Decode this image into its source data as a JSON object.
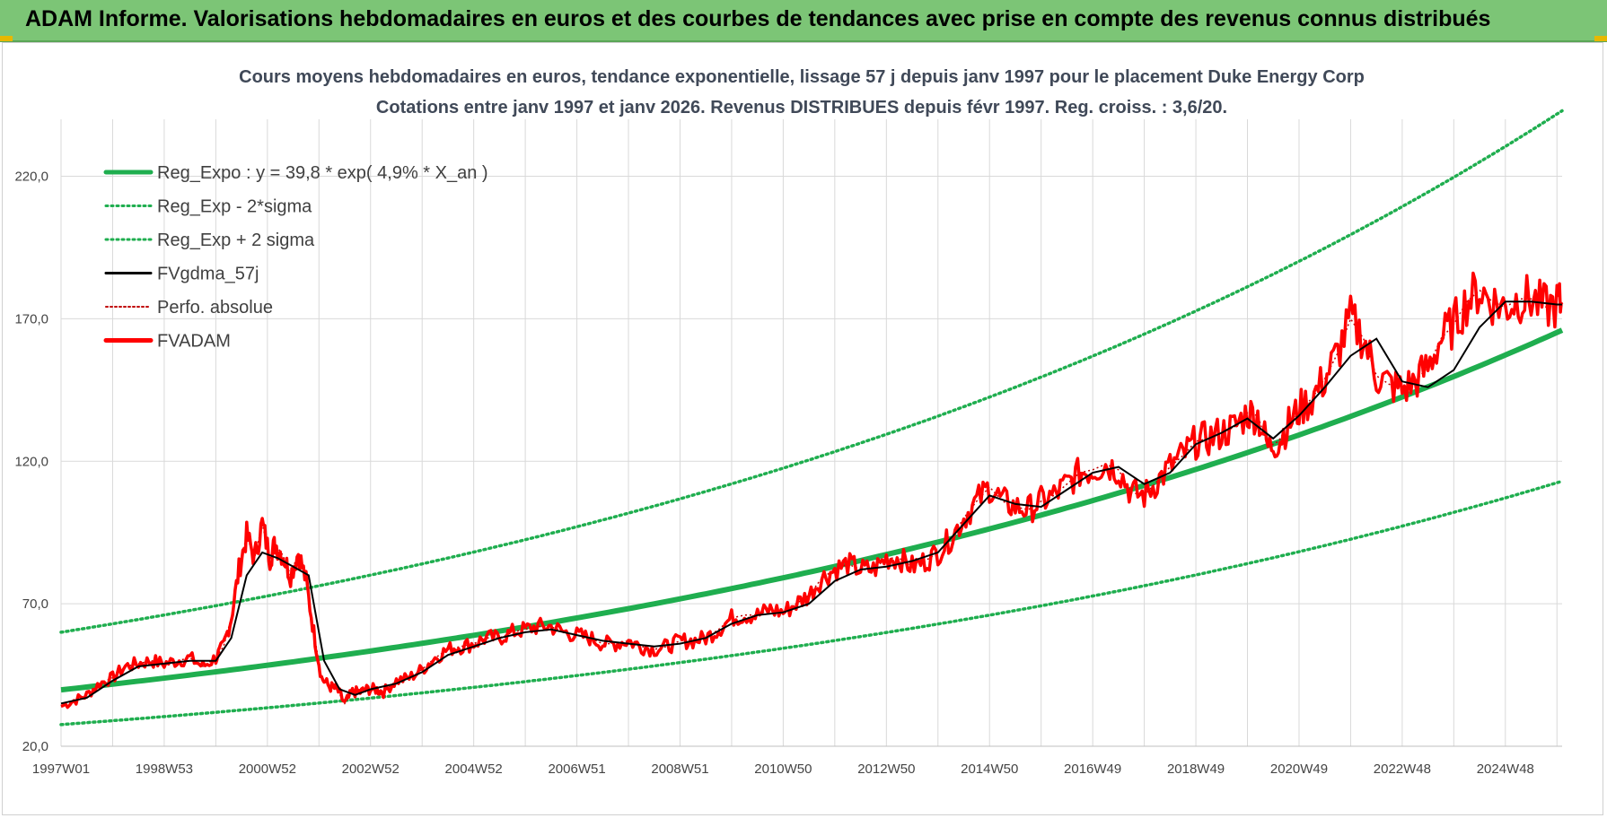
{
  "page": {
    "banner_title": "ADAM Informe. Valorisations hebdomadaires en euros et des courbes de tendances avec prise en compte des revenus connus distribués"
  },
  "colors": {
    "banner_bg": "#7cc576",
    "reg_expo": "#1fae4f",
    "fvgdma": "#000000",
    "fvadam": "#ff0000",
    "perfo": "#c00000",
    "grid": "#d9d9d9"
  },
  "chart_data": {
    "type": "line",
    "title_line1": "Cours moyens hebdomadaires en euros, tendance exponentielle, lissage 57 j depuis janv 1997 pour le placement Duke Energy Corp",
    "title_line2": "Cotations entre janv 1997 et janv 2026. Revenus DISTRIBUES depuis févr 1997. Reg. croiss. : 3,6/20.",
    "xlabel": "",
    "ylabel": "",
    "x_range_years": [
      1997.0,
      2026.1
    ],
    "ylim": [
      20,
      240
    ],
    "yticks": [
      20,
      70,
      120,
      170,
      220
    ],
    "ytick_labels": [
      "20,0",
      "70,0",
      "120,0",
      "170,0",
      "220,0"
    ],
    "xtick_labels": [
      "1997W01",
      "1998W53",
      "2000W52",
      "2002W52",
      "2004W52",
      "2006W51",
      "2008W51",
      "2010W50",
      "2012W50",
      "2014W50",
      "2016W49",
      "2018W49",
      "2020W49",
      "2022W48",
      "2024W48"
    ],
    "xtick_years": [
      1997.0,
      1999.0,
      2001.0,
      2003.0,
      2005.0,
      2007.0,
      2009.0,
      2011.0,
      2013.0,
      2015.0,
      2017.0,
      2019.0,
      2021.0,
      2023.0,
      2025.0
    ],
    "grid": true,
    "legend_position": "top-left",
    "legend": [
      {
        "key": "reg_expo",
        "label": "Reg_Expo : y = 39,8 * exp( 4,9% *  X_an )",
        "style": "thick-green"
      },
      {
        "key": "reg_minus",
        "label": "Reg_Exp - 2*sigma",
        "style": "dotted-green"
      },
      {
        "key": "reg_plus",
        "label": "Reg_Exp + 2 sigma",
        "style": "dotted-green"
      },
      {
        "key": "fvgdma",
        "label": "FVgdma_57j",
        "style": "black"
      },
      {
        "key": "perfo",
        "label": "Perfo. absolue",
        "style": "dotted-red"
      },
      {
        "key": "fvadam",
        "label": "FVADAM",
        "style": "thick-red"
      }
    ],
    "trend": {
      "start_year": 1997.0,
      "end_year": 2026.1,
      "reg_expo": [
        39.8,
        166.0
      ],
      "reg_minus": [
        27.6,
        113.0
      ],
      "reg_plus": [
        60.0,
        243.0
      ]
    },
    "series": [
      {
        "name": "FVADAM",
        "x": [
          1997.0,
          1997.25,
          1997.5,
          1997.75,
          1998.0,
          1998.25,
          1998.5,
          1998.75,
          1999.0,
          1999.25,
          1999.5,
          1999.75,
          2000.0,
          2000.15,
          2000.3,
          2000.45,
          2000.6,
          2000.75,
          2000.9,
          2001.05,
          2001.15,
          2001.3,
          2001.45,
          2001.6,
          2001.75,
          2001.9,
          2002.05,
          2002.2,
          2002.35,
          2002.5,
          2002.65,
          2002.8,
          2002.95,
          2003.1,
          2003.25,
          2003.5,
          2003.75,
          2004.0,
          2004.25,
          2004.5,
          2004.75,
          2005.0,
          2005.25,
          2005.5,
          2005.75,
          2006.0,
          2006.25,
          2006.5,
          2006.75,
          2007.0,
          2007.25,
          2007.5,
          2007.75,
          2008.0,
          2008.25,
          2008.5,
          2008.75,
          2009.0,
          2009.25,
          2009.5,
          2009.75,
          2010.0,
          2010.25,
          2010.5,
          2010.75,
          2011.0,
          2011.25,
          2011.5,
          2011.75,
          2012.0,
          2012.25,
          2012.5,
          2012.75,
          2013.0,
          2013.25,
          2013.5,
          2013.75,
          2014.0,
          2014.25,
          2014.5,
          2014.75,
          2015.0,
          2015.25,
          2015.5,
          2015.75,
          2016.0,
          2016.25,
          2016.5,
          2016.75,
          2017.0,
          2017.25,
          2017.5,
          2017.75,
          2018.0,
          2018.25,
          2018.5,
          2018.75,
          2019.0,
          2019.25,
          2019.5,
          2019.75,
          2020.0,
          2020.2,
          2020.4,
          2020.6,
          2020.8,
          2021.0,
          2021.25,
          2021.5,
          2021.75,
          2022.0,
          2022.25,
          2022.5,
          2022.75,
          2023.0,
          2023.25,
          2023.5,
          2023.75,
          2024.0,
          2024.25,
          2024.5,
          2024.75,
          2025.0,
          2025.25,
          2025.5,
          2025.75,
          2026.0,
          2026.1
        ],
        "values": [
          34,
          36,
          38,
          42,
          44,
          48,
          49,
          50,
          49,
          50,
          51,
          48,
          51,
          55,
          65,
          82,
          94,
          86,
          98,
          86,
          91,
          87,
          80,
          88,
          78,
          60,
          44,
          41,
          40,
          35,
          39,
          39,
          40,
          40,
          39,
          43,
          44,
          47,
          51,
          54,
          55,
          56,
          58,
          58,
          60,
          61,
          62,
          62,
          60,
          59,
          58,
          56,
          56,
          57,
          55,
          54,
          55,
          57,
          57,
          58,
          61,
          65,
          66,
          66,
          68,
          67,
          70,
          73,
          79,
          82,
          84,
          82,
          82,
          86,
          86,
          83,
          85,
          88,
          93,
          100,
          106,
          111,
          106,
          104,
          103,
          106,
          108,
          112,
          116,
          117,
          119,
          117,
          109,
          108,
          113,
          118,
          122,
          127,
          128,
          130,
          132,
          137,
          136,
          125,
          127,
          133,
          138,
          142,
          149,
          158,
          170,
          163,
          150,
          147,
          145,
          148,
          153,
          163,
          168,
          176,
          180,
          176,
          174,
          177,
          177,
          174,
          175,
          175
        ]
      },
      {
        "name": "FVgdma_57j",
        "x": [
          1997.0,
          1997.5,
          1998.0,
          1998.5,
          1999.0,
          1999.5,
          2000.0,
          2000.3,
          2000.6,
          2000.9,
          2001.2,
          2001.5,
          2001.8,
          2002.1,
          2002.4,
          2002.7,
          2003.0,
          2003.5,
          2004.0,
          2004.5,
          2005.0,
          2005.5,
          2006.0,
          2006.5,
          2007.0,
          2007.5,
          2008.0,
          2008.5,
          2009.0,
          2009.5,
          2010.0,
          2010.5,
          2011.0,
          2011.5,
          2012.0,
          2012.5,
          2013.0,
          2013.5,
          2014.0,
          2014.5,
          2015.0,
          2015.5,
          2016.0,
          2016.5,
          2017.0,
          2017.5,
          2018.0,
          2018.5,
          2019.0,
          2019.5,
          2020.0,
          2020.5,
          2021.0,
          2021.5,
          2022.0,
          2022.5,
          2023.0,
          2023.5,
          2024.0,
          2024.5,
          2025.0,
          2025.5,
          2026.0,
          2026.1
        ],
        "values": [
          35,
          37,
          43,
          48,
          49,
          50,
          50,
          58,
          80,
          88,
          86,
          83,
          80,
          50,
          40,
          38,
          40,
          42,
          46,
          52,
          55,
          58,
          60,
          61,
          59,
          57,
          56,
          55,
          56,
          58,
          63,
          66,
          67,
          70,
          78,
          82,
          83,
          85,
          88,
          98,
          108,
          105,
          104,
          110,
          116,
          118,
          112,
          116,
          126,
          130,
          135,
          128,
          136,
          146,
          157,
          163,
          148,
          146,
          152,
          167,
          176,
          176,
          175,
          175
        ]
      }
    ]
  }
}
